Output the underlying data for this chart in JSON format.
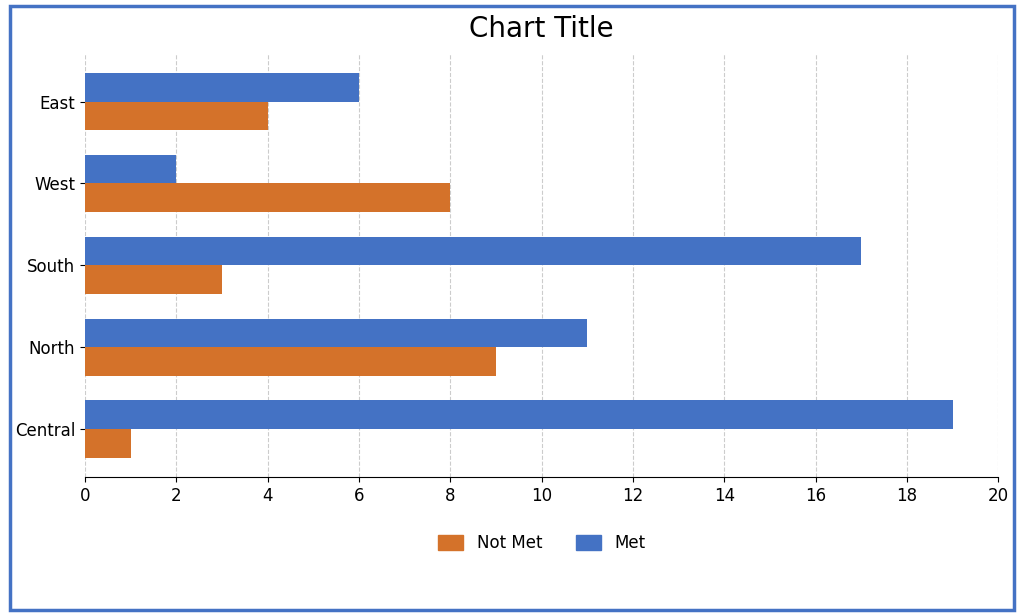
{
  "title": "Chart Title",
  "categories": [
    "Central",
    "North",
    "South",
    "West",
    "East"
  ],
  "not_met": [
    1,
    9,
    3,
    8,
    4
  ],
  "met": [
    19,
    11,
    17,
    2,
    6
  ],
  "not_met_color": "#D4722A",
  "met_color": "#4472C4",
  "xlim": [
    0,
    20
  ],
  "xticks": [
    0,
    2,
    4,
    6,
    8,
    10,
    12,
    14,
    16,
    18,
    20
  ],
  "title_fontsize": 20,
  "tick_fontsize": 12,
  "legend_fontsize": 12,
  "bar_height": 0.35,
  "background_color": "#ffffff",
  "grid_color": "#cccccc",
  "border_color": "#4472C4",
  "legend_labels": [
    "Not Met",
    "Met"
  ]
}
